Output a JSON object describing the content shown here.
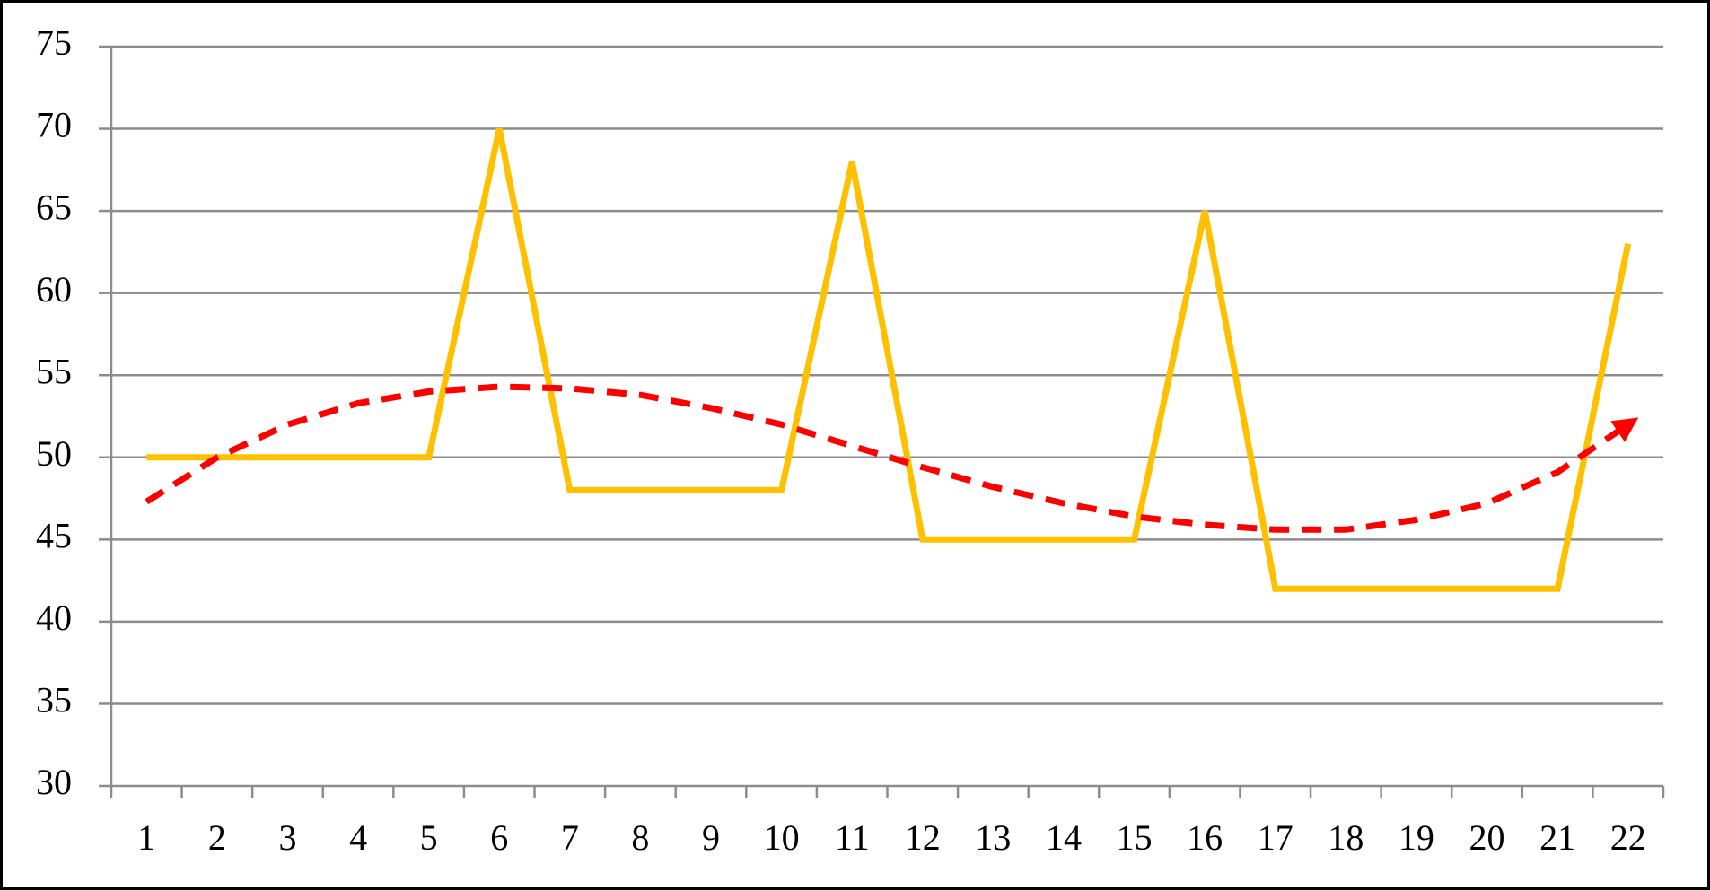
{
  "chart_data": {
    "type": "line",
    "categories": [
      "1",
      "2",
      "3",
      "4",
      "5",
      "6",
      "7",
      "8",
      "9",
      "10",
      "11",
      "12",
      "13",
      "14",
      "15",
      "16",
      "17",
      "18",
      "19",
      "20",
      "21",
      "22"
    ],
    "series": [
      {
        "color": "#ffc000",
        "values": [
          50,
          50,
          50,
          50,
          50,
          70,
          48,
          48,
          48,
          48,
          68,
          45,
          45,
          45,
          45,
          65,
          42,
          42,
          42,
          42,
          42,
          63
        ]
      },
      {
        "color": "#ff0000",
        "dashed": true,
        "arrow": true,
        "values": [
          47.3,
          50,
          52,
          53.3,
          54,
          54.3,
          54.2,
          53.8,
          53,
          52,
          50.7,
          49.4,
          48.2,
          47.2,
          46.4,
          45.9,
          45.6,
          45.6,
          46.2,
          47.2,
          49.1,
          52
        ]
      }
    ],
    "ylim": [
      30,
      75
    ],
    "yticks": [
      30,
      35,
      40,
      45,
      50,
      55,
      60,
      65,
      70,
      75
    ],
    "grid": true
  }
}
